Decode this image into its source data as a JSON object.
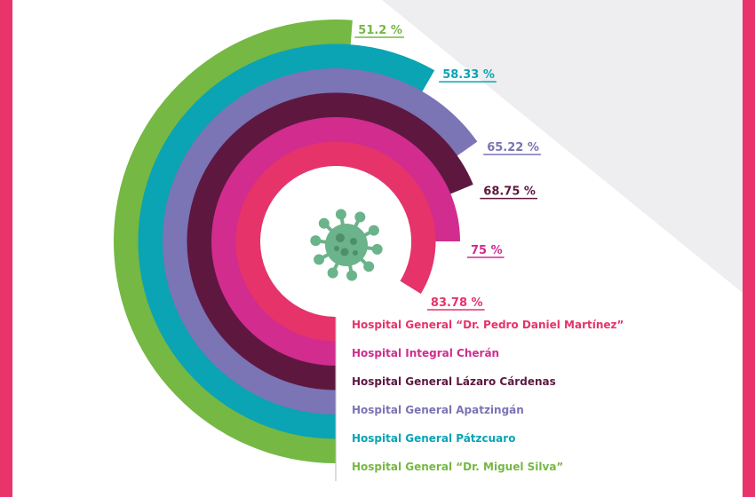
{
  "colors": {
    "frame": "#e8336b",
    "background_facet": "#eeeef0",
    "virus": "#6bb38b",
    "virus_dark": "#4d8f69",
    "center_disc": "#ffffff",
    "label_line": "#b9b9bd"
  },
  "center_icon": "virus-icon",
  "chart_data": {
    "type": "radial_bar",
    "max_value": 100,
    "series": [
      {
        "label": "Hospital General “Dr. Miguel Silva”",
        "value": 51.2,
        "display": "51.2 %",
        "color": "#75b843"
      },
      {
        "label": "Hospital General Pátzcuaro",
        "value": 58.33,
        "display": "58.33 %",
        "color": "#0aa4b4"
      },
      {
        "label": "Hospital General Apatzingán",
        "value": 65.22,
        "display": "65.22 %",
        "color": "#7b74b5"
      },
      {
        "label": "Hospital General Lázaro Cárdenas",
        "value": 68.75,
        "display": "68.75 %",
        "color": "#5e1840"
      },
      {
        "label": "Hospital Integral Cherán",
        "value": 75,
        "display": "75 %",
        "color": "#d12c8e"
      },
      {
        "label": "Hospital General “Dr. Pedro Daniel Martínez”",
        "value": 83.78,
        "display": "83.78 %",
        "color": "#e6336a"
      }
    ]
  }
}
